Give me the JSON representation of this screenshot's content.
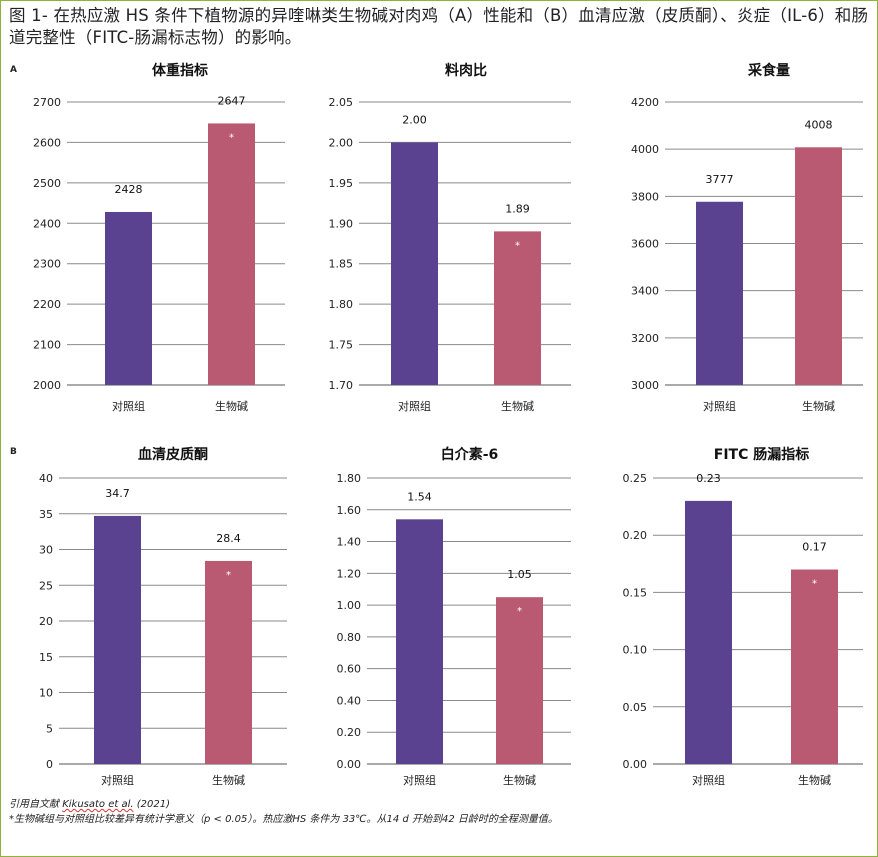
{
  "figure_title": "图 1- 在热应激 HS 条件下植物源的异喹啉类生物碱对肉鸡（A）性能和（B）血清应激（皮质酮）、炎症（IL-6）和肠道完整性（FITC-肠漏标志物）的影响。",
  "panel_labels": {
    "a": "A",
    "b": "B"
  },
  "colors": {
    "control": "#5b4290",
    "alkaloid": "#ba5a72",
    "frame": "#8db33a",
    "grid": "#8a8a8a"
  },
  "chart_data": [
    {
      "type": "bar",
      "title": "体重指标",
      "categories": [
        "对照组",
        "生物碱"
      ],
      "values": [
        2428,
        2647
      ],
      "value_labels": [
        "2428",
        "2647"
      ],
      "stars": [
        "",
        "*"
      ],
      "ylim": [
        2000,
        2700
      ],
      "ticks": [
        {
          "v": 2000,
          "label": "2000"
        },
        {
          "v": 2100,
          "label": "2100"
        },
        {
          "v": 2200,
          "label": "2200"
        },
        {
          "v": 2300,
          "label": "2300"
        },
        {
          "v": 2400,
          "label": "2400"
        },
        {
          "v": 2500,
          "label": "2500"
        },
        {
          "v": 2600,
          "label": "2600"
        },
        {
          "v": 2700,
          "label": "2700"
        }
      ]
    },
    {
      "type": "bar",
      "title": "料肉比",
      "categories": [
        "对照组",
        "生物碱"
      ],
      "values": [
        2.0,
        1.89
      ],
      "value_labels": [
        "2.00",
        "1.89"
      ],
      "stars": [
        "",
        "*"
      ],
      "ylim": [
        1.7,
        2.05
      ],
      "ticks": [
        {
          "v": 1.7,
          "label": "1.70"
        },
        {
          "v": 1.75,
          "label": "1.75"
        },
        {
          "v": 1.8,
          "label": "1.80"
        },
        {
          "v": 1.85,
          "label": "1.85"
        },
        {
          "v": 1.9,
          "label": "1.90"
        },
        {
          "v": 1.95,
          "label": "1.95"
        },
        {
          "v": 2.0,
          "label": "2.00"
        },
        {
          "v": 2.05,
          "label": "2.05"
        }
      ]
    },
    {
      "type": "bar",
      "title": "采食量",
      "categories": [
        "对照组",
        "生物碱"
      ],
      "values": [
        3777,
        4008
      ],
      "value_labels": [
        "3777",
        "4008"
      ],
      "stars": [
        "",
        ""
      ],
      "ylim": [
        3000,
        4200
      ],
      "ticks": [
        {
          "v": 3000,
          "label": "3000"
        },
        {
          "v": 3200,
          "label": "3200"
        },
        {
          "v": 3400,
          "label": "3400"
        },
        {
          "v": 3600,
          "label": "3600"
        },
        {
          "v": 3800,
          "label": "3800"
        },
        {
          "v": 4000,
          "label": "4000"
        },
        {
          "v": 4200,
          "label": "4200"
        }
      ]
    },
    {
      "type": "bar",
      "title": "血清皮质酮",
      "categories": [
        "对照组",
        "生物碱"
      ],
      "values": [
        34.7,
        28.4
      ],
      "value_labels": [
        "34.7",
        "28.4"
      ],
      "stars": [
        "",
        "*"
      ],
      "ylim": [
        0,
        40
      ],
      "ticks": [
        {
          "v": 0,
          "label": "0"
        },
        {
          "v": 5,
          "label": "5"
        },
        {
          "v": 10,
          "label": "10"
        },
        {
          "v": 15,
          "label": "15"
        },
        {
          "v": 20,
          "label": "20"
        },
        {
          "v": 25,
          "label": "25"
        },
        {
          "v": 30,
          "label": "30"
        },
        {
          "v": 35,
          "label": "35"
        },
        {
          "v": 40,
          "label": "40"
        }
      ]
    },
    {
      "type": "bar",
      "title": "白介素-6",
      "categories": [
        "对照组",
        "生物碱"
      ],
      "values": [
        1.54,
        1.05
      ],
      "value_labels": [
        "1.54",
        "1.05"
      ],
      "stars": [
        "",
        "*"
      ],
      "ylim": [
        0,
        1.8
      ],
      "ticks": [
        {
          "v": 0.0,
          "label": "0.00"
        },
        {
          "v": 0.2,
          "label": "0.20"
        },
        {
          "v": 0.4,
          "label": "0.40"
        },
        {
          "v": 0.6,
          "label": "0.60"
        },
        {
          "v": 0.8,
          "label": "0.80"
        },
        {
          "v": 1.0,
          "label": "1.00"
        },
        {
          "v": 1.2,
          "label": "1.20"
        },
        {
          "v": 1.4,
          "label": "1.40"
        },
        {
          "v": 1.6,
          "label": "1.60"
        },
        {
          "v": 1.8,
          "label": "1.80"
        }
      ]
    },
    {
      "type": "bar",
      "title": "FITC 肠漏指标",
      "categories": [
        "对照组",
        "生物碱"
      ],
      "values": [
        0.23,
        0.17
      ],
      "value_labels": [
        "0.23",
        "0.17"
      ],
      "stars": [
        "",
        "*"
      ],
      "ylim": [
        0,
        0.25
      ],
      "ticks": [
        {
          "v": 0.0,
          "label": "0.00"
        },
        {
          "v": 0.05,
          "label": "0.05"
        },
        {
          "v": 0.1,
          "label": "0.10"
        },
        {
          "v": 0.15,
          "label": "0.15"
        },
        {
          "v": 0.2,
          "label": "0.20"
        },
        {
          "v": 0.25,
          "label": "0.25"
        }
      ]
    }
  ],
  "footer": {
    "source_prefix": "引用自文献 ",
    "source_author": "Kikusato et al.",
    "source_year": " (2021)",
    "note": "*生物碱组与对照组比较差异有统计学意义（p < 0.05）。热应激HS 条件为 33℃。从14 d 开始到42 日龄时的全程测量值。"
  }
}
